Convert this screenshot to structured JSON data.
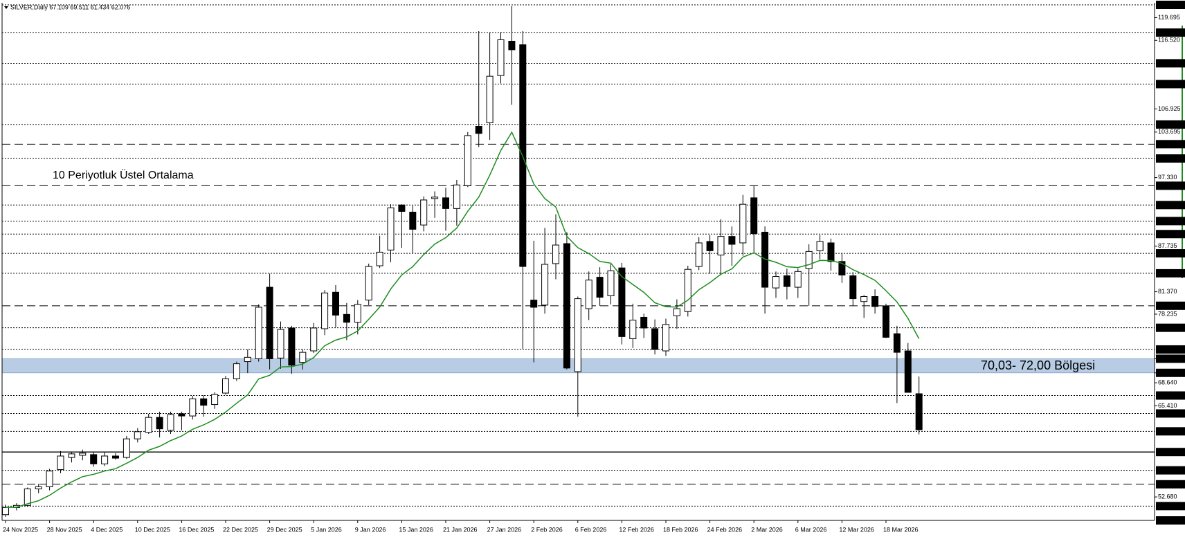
{
  "chart_data": {
    "type": "candlestick",
    "header": "SILVER,Daily 67.109 69.511 61.434 62.076",
    "up_color": "#ffffff",
    "down_color": "#000000",
    "categories": [
      "24 Nov 2025",
      null,
      null,
      null,
      "28 Nov 2025",
      null,
      null,
      null,
      "4 Dec 2025",
      null,
      null,
      null,
      "10 Dec 2025",
      null,
      null,
      null,
      "16 Dec 2025",
      null,
      null,
      null,
      "22 Dec 2025",
      null,
      null,
      null,
      "29 Dec 2025",
      null,
      null,
      null,
      "5 Jan 2026",
      null,
      null,
      null,
      "9 Jan 2026",
      null,
      null,
      null,
      "15 Jan 2026",
      null,
      null,
      null,
      "21 Jan 2026",
      null,
      null,
      null,
      "27 Jan 2026",
      null,
      null,
      null,
      "2 Feb 2026",
      null,
      null,
      null,
      "6 Feb 2026",
      null,
      null,
      null,
      "12 Feb 2026",
      null,
      null,
      null,
      "18 Feb 2026",
      null,
      null,
      null,
      "24 Feb 2026",
      null,
      null,
      null,
      "2 Mar 2026",
      null,
      null,
      null,
      "6 Mar 2026",
      null,
      null,
      null,
      "12 Mar 2026",
      null,
      null,
      null,
      "18 Mar 2026",
      null,
      null,
      null
    ],
    "open": [
      50.2,
      51.2,
      51.5,
      53.8,
      54.1,
      56.5,
      58.2,
      58.5,
      58.6,
      57.3,
      58.4,
      58.2,
      60.8,
      61.7,
      63.8,
      62.0,
      64.3,
      64.0,
      66.4,
      65.6,
      67.2,
      69.2,
      71.6,
      72.0,
      82.0,
      72.1,
      76.3,
      71.5,
      73.1,
      76.2,
      81.3,
      78.2,
      77.1,
      80.2,
      85.0,
      87.2,
      93.5,
      92.5,
      90.7,
      94.4,
      94.5,
      93.0,
      96.2,
      104.5,
      105.0,
      111.6,
      116.4,
      115.9,
      80.2,
      79.5,
      85.3,
      88.1,
      70.2,
      79.0,
      83.4,
      80.8,
      84.7,
      74.8,
      77.8,
      76.2,
      73.1,
      78.0,
      78.6,
      84.9,
      88.4,
      86.5,
      89.1,
      88.2,
      94.5,
      89.7,
      81.9,
      83.6,
      82.0,
      84.6,
      87.1,
      88.2,
      85.6,
      83.6,
      80.0,
      80.7,
      79.4,
      75.5,
      73.1,
      67.109
    ],
    "high": [
      51.6,
      51.8,
      54.0,
      54.5,
      56.6,
      59.1,
      58.9,
      59.3,
      58.9,
      59.0,
      58.8,
      61.2,
      62.3,
      64.3,
      64.6,
      64.6,
      64.6,
      66.8,
      66.9,
      67.3,
      69.6,
      71.6,
      73.3,
      79.6,
      83.9,
      77.2,
      76.6,
      73.3,
      77.0,
      81.6,
      82.3,
      79.8,
      80.2,
      85.3,
      89.2,
      93.6,
      93.6,
      93.4,
      94.7,
      95.4,
      95.9,
      97.0,
      103.7,
      117.8,
      117.6,
      117.7,
      121.3,
      117.8,
      88.5,
      90.3,
      92.2,
      89.7,
      80.7,
      84.2,
      84.8,
      85.2,
      85.4,
      79.7,
      78.3,
      77.5,
      77.6,
      80.3,
      85.0,
      89.0,
      89.3,
      91.5,
      90.5,
      94.9,
      96.2,
      90.5,
      84.2,
      84.6,
      84.6,
      88.0,
      89.3,
      88.8,
      86.8,
      84.1,
      80.9,
      81.7,
      79.7,
      76.6,
      74.2,
      69.511
    ],
    "low": [
      49.9,
      50.8,
      51.3,
      53.2,
      53.6,
      56.0,
      57.5,
      57.8,
      56.9,
      57.0,
      57.9,
      58.0,
      60.3,
      61.5,
      61.0,
      61.5,
      62.0,
      63.5,
      63.9,
      65.0,
      67.0,
      68.9,
      70.0,
      71.6,
      70.5,
      70.6,
      69.9,
      70.5,
      72.8,
      75.3,
      76.4,
      74.6,
      75.4,
      79.5,
      84.7,
      85.5,
      87.5,
      86.7,
      89.8,
      91.7,
      89.9,
      90.6,
      96.0,
      101.6,
      102.6,
      110.5,
      107.5,
      73.4,
      71.5,
      78.3,
      83.1,
      70.5,
      63.9,
      77.4,
      79.4,
      79.6,
      74.0,
      73.5,
      74.9,
      72.6,
      72.4,
      76.2,
      77.9,
      84.4,
      83.9,
      83.7,
      85.0,
      86.4,
      86.8,
      78.3,
      80.5,
      80.3,
      80.5,
      79.4,
      85.9,
      84.3,
      82.6,
      79.4,
      77.7,
      78.3,
      74.9,
      65.8,
      67.5,
      61.434
    ],
    "close": [
      51.2,
      51.5,
      53.8,
      54.1,
      56.3,
      58.4,
      58.7,
      58.8,
      57.3,
      58.4,
      58.1,
      60.8,
      61.8,
      63.8,
      62.2,
      64.2,
      64.0,
      66.4,
      65.5,
      67.0,
      69.2,
      71.3,
      72.2,
      79.2,
      72.0,
      76.1,
      71.1,
      72.9,
      76.3,
      81.2,
      78.1,
      77.1,
      79.6,
      84.9,
      86.9,
      93.1,
      92.6,
      90.1,
      94.2,
      94.6,
      93.0,
      96.3,
      103.2,
      103.5,
      111.5,
      116.6,
      115.2,
      84.9,
      79.2,
      85.2,
      87.9,
      70.7,
      80.4,
      83.0,
      80.6,
      84.3,
      75.1,
      77.4,
      76.3,
      73.3,
      76.8,
      79.0,
      84.5,
      88.2,
      87.1,
      89.1,
      88.0,
      93.6,
      89.5,
      82.0,
      83.5,
      82.1,
      84.2,
      87.0,
      88.4,
      85.6,
      83.7,
      80.4,
      80.7,
      79.3,
      75.0,
      72.9,
      67.3,
      62.076
    ],
    "series": [
      {
        "name": "10 Periyotluk Üstel Ortalama",
        "color": "#1e8c1e",
        "values": [
          51.2,
          51.25,
          51.72,
          52.15,
          52.91,
          53.91,
          54.78,
          55.51,
          55.84,
          56.3,
          56.63,
          57.39,
          58.19,
          59.21,
          59.75,
          60.56,
          61.19,
          62.14,
          62.75,
          63.52,
          64.55,
          65.78,
          66.95,
          69.18,
          69.69,
          70.86,
          70.9,
          71.26,
          72.18,
          73.82,
          74.6,
          75.05,
          75.88,
          77.52,
          79.22,
          81.74,
          83.72,
          84.88,
          86.57,
          88.03,
          88.93,
          90.27,
          92.62,
          94.6,
          97.67,
          101.11,
          103.67,
          100.26,
          96.43,
          94.39,
          93.21,
          89.12,
          87.53,
          86.71,
          85.6,
          85.36,
          83.49,
          82.38,
          81.28,
          79.83,
          79.28,
          79.23,
          80.19,
          81.65,
          82.64,
          83.81,
          84.57,
          86.21,
          86.81,
          85.93,
          85.49,
          84.87,
          84.75,
          85.16,
          85.75,
          85.72,
          85.35,
          84.45,
          83.77,
          82.96,
          81.51,
          79.94,
          77.64,
          74.8
        ]
      }
    ],
    "ylim": [
      49.4,
      121.48
    ],
    "yticks": [
      119.695,
      {
        "value": 116.52,
        "label": "116.520"
      },
      106.925,
      103.695,
      {
        "value": 97.33,
        "label": "97.330"
      },
      87.735,
      {
        "value": 81.37,
        "label": "81.370"
      },
      78.235,
      {
        "value": 68.64,
        "label": "68.640"
      },
      {
        "value": 65.41,
        "label": "65.410"
      },
      {
        "value": 52.68,
        "label": "52.680"
      }
    ],
    "levels": [
      {
        "value": 121.48,
        "label": "121.480",
        "style": "dotted"
      },
      {
        "value": 117.6,
        "label": "117.600",
        "style": "dotted"
      },
      {
        "value": 113.31,
        "label": "113.310",
        "style": "dotted"
      },
      {
        "value": 110.4,
        "label": "110.400",
        "style": "dotted"
      },
      {
        "value": 104.75,
        "label": "104.750",
        "style": "dotted"
      },
      {
        "value": 102,
        "label": "102.000",
        "style": "dashed"
      },
      {
        "value": 100,
        "label": "100.000",
        "style": "dotted"
      },
      {
        "value": 96.19,
        "label": "96.190",
        "style": "dashed"
      },
      {
        "value": 93.49,
        "label": "93.490",
        "style": "dotted"
      },
      {
        "value": 91.25,
        "label": "91.250",
        "style": "dotted"
      },
      {
        "value": 89.43,
        "label": "89.430",
        "style": "dotted"
      },
      {
        "value": 86.74,
        "label": "86.740",
        "style": "dotted"
      },
      {
        "value": 83.95,
        "label": "83.950",
        "style": "dotted"
      },
      {
        "value": 79.41,
        "label": "79.410",
        "style": "dashed"
      },
      {
        "value": 76.33,
        "label": "76.330",
        "style": "dotted"
      },
      {
        "value": 73.3,
        "label": "73.300",
        "style": "dotted"
      },
      {
        "value": 66.86,
        "label": "66.860",
        "style": "dotted"
      },
      {
        "value": 64.35,
        "label": "64.350",
        "style": "dotted"
      },
      {
        "value": 61.85,
        "label": "61.850",
        "style": "dotted"
      },
      {
        "value": 58.96,
        "label": "58.960",
        "style": "solid"
      },
      {
        "value": 56.4,
        "label": "56.400",
        "style": "dotted"
      },
      {
        "value": 54.45,
        "label": "54.450",
        "style": "dashed"
      },
      {
        "value": 51.4,
        "label": "51.400",
        "style": "dotted"
      },
      {
        "value": 49.4,
        "label": "49.400",
        "style": "dotted"
      }
    ],
    "zone": {
      "label": "70,03- 72,00 Bölgesi",
      "color": "#b8cce4",
      "from": {
        "value": 70.03,
        "label": "70.030"
      },
      "to": {
        "value": 72,
        "label": "72.000"
      }
    }
  }
}
